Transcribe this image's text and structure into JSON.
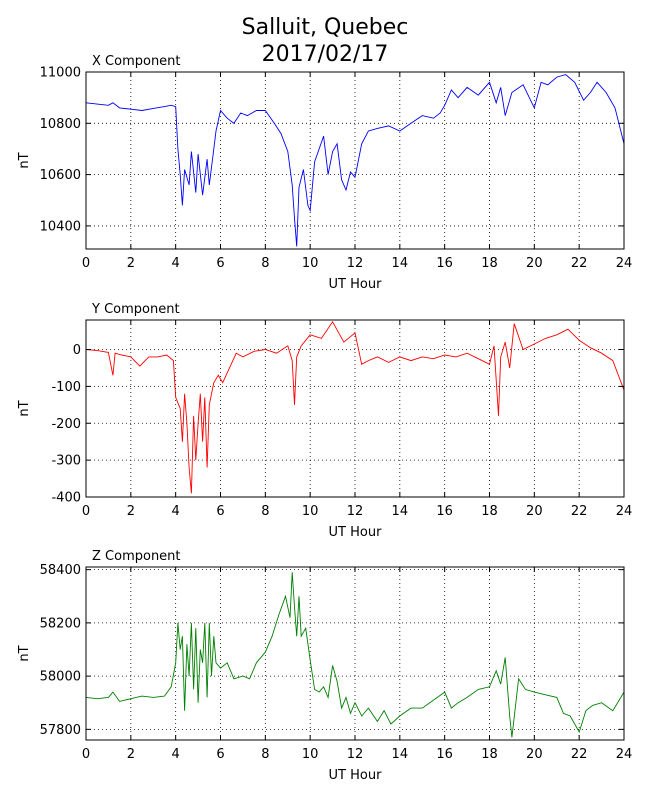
{
  "figure": {
    "title_line1": "Salluit, Quebec",
    "title_line2": "2017/02/17"
  },
  "chart_data": [
    {
      "type": "line",
      "subtitle": "X Component",
      "xlabel": "UT Hour",
      "ylabel": "nT",
      "xlim": [
        0,
        24
      ],
      "ylim": [
        10310,
        11000
      ],
      "xticks": [
        0,
        2,
        4,
        6,
        8,
        10,
        12,
        14,
        16,
        18,
        20,
        22,
        24
      ],
      "yticks": [
        10400,
        10600,
        10800,
        11000
      ],
      "grid": true,
      "color": "#0000ff",
      "x": [
        0,
        0.5,
        1,
        1.2,
        1.5,
        2,
        2.5,
        3,
        3.5,
        3.8,
        4.0,
        4.1,
        4.2,
        4.3,
        4.4,
        4.6,
        4.7,
        4.9,
        5.0,
        5.2,
        5.4,
        5.5,
        5.7,
        5.8,
        6.0,
        6.3,
        6.6,
        6.9,
        7.2,
        7.6,
        8.0,
        8.4,
        8.7,
        9.0,
        9.2,
        9.3,
        9.4,
        9.5,
        9.7,
        9.9,
        10.0,
        10.2,
        10.4,
        10.6,
        10.8,
        11.0,
        11.2,
        11.4,
        11.6,
        11.8,
        12.0,
        12.3,
        12.6,
        13.0,
        13.5,
        14.0,
        14.5,
        15.0,
        15.5,
        15.8,
        16.0,
        16.3,
        16.6,
        17.0,
        17.5,
        18.0,
        18.3,
        18.5,
        18.7,
        19.0,
        19.5,
        20.0,
        20.3,
        20.6,
        21.0,
        21.4,
        21.8,
        22.2,
        22.5,
        22.8,
        23.2,
        23.6,
        24.0
      ],
      "y": [
        10880,
        10875,
        10870,
        10880,
        10860,
        10855,
        10850,
        10858,
        10865,
        10870,
        10865,
        10700,
        10600,
        10480,
        10620,
        10560,
        10690,
        10530,
        10680,
        10520,
        10660,
        10560,
        10700,
        10770,
        10850,
        10820,
        10800,
        10840,
        10830,
        10850,
        10850,
        10800,
        10760,
        10690,
        10560,
        10430,
        10320,
        10550,
        10620,
        10480,
        10460,
        10650,
        10700,
        10750,
        10600,
        10690,
        10720,
        10580,
        10540,
        10610,
        10590,
        10720,
        10770,
        10780,
        10790,
        10770,
        10800,
        10830,
        10820,
        10840,
        10870,
        10930,
        10900,
        10940,
        10910,
        10960,
        10880,
        10940,
        10830,
        10920,
        10950,
        10860,
        10960,
        10950,
        10980,
        10990,
        10960,
        10890,
        10920,
        10960,
        10920,
        10860,
        10720
      ]
    },
    {
      "type": "line",
      "subtitle": "Y Component",
      "xlabel": "UT Hour",
      "ylabel": "nT",
      "xlim": [
        0,
        24
      ],
      "ylim": [
        -400,
        80
      ],
      "xticks": [
        0,
        2,
        4,
        6,
        8,
        10,
        12,
        14,
        16,
        18,
        20,
        22,
        24
      ],
      "yticks": [
        -400,
        -300,
        -200,
        -100,
        0
      ],
      "grid": true,
      "color": "#ff0000",
      "x": [
        0,
        0.5,
        1.0,
        1.2,
        1.3,
        1.6,
        2.0,
        2.4,
        2.8,
        3.2,
        3.6,
        3.9,
        4.0,
        4.2,
        4.3,
        4.4,
        4.5,
        4.6,
        4.7,
        4.8,
        4.9,
        5.0,
        5.1,
        5.2,
        5.3,
        5.4,
        5.5,
        5.7,
        5.9,
        6.1,
        6.4,
        6.7,
        7.0,
        7.5,
        8.0,
        8.5,
        9.0,
        9.2,
        9.3,
        9.4,
        9.6,
        10.0,
        10.5,
        11.0,
        11.5,
        12.0,
        12.3,
        12.6,
        13.0,
        13.5,
        14.0,
        14.5,
        15.0,
        15.5,
        16.0,
        16.5,
        17.0,
        17.5,
        18.0,
        18.2,
        18.4,
        18.5,
        18.7,
        18.9,
        19.1,
        19.5,
        20.0,
        20.5,
        21.0,
        21.5,
        22.0,
        22.5,
        23.0,
        23.5,
        24.0
      ],
      "y": [
        0,
        -3,
        -8,
        -70,
        -10,
        -15,
        -20,
        -45,
        -20,
        -20,
        -15,
        -30,
        -130,
        -160,
        -250,
        -120,
        -200,
        -320,
        -390,
        -180,
        -300,
        -200,
        -120,
        -250,
        -130,
        -320,
        -150,
        -90,
        -70,
        -90,
        -50,
        -10,
        -20,
        -5,
        0,
        -10,
        10,
        -30,
        -150,
        -20,
        10,
        40,
        30,
        75,
        20,
        45,
        -40,
        -30,
        -20,
        -35,
        -20,
        -30,
        -20,
        -25,
        -15,
        -20,
        -10,
        -25,
        -40,
        10,
        -180,
        -20,
        20,
        -50,
        70,
        0,
        15,
        30,
        40,
        55,
        25,
        5,
        -10,
        -30,
        -110
      ]
    },
    {
      "type": "line",
      "subtitle": "Z Component",
      "xlabel": "UT Hour",
      "ylabel": "nT",
      "xlim": [
        0,
        24
      ],
      "ylim": [
        57760,
        58410
      ],
      "xticks": [
        0,
        2,
        4,
        6,
        8,
        10,
        12,
        14,
        16,
        18,
        20,
        22,
        24
      ],
      "yticks": [
        57800,
        58000,
        58200,
        58400
      ],
      "grid": true,
      "color": "#008000",
      "x": [
        0,
        0.5,
        1.0,
        1.2,
        1.5,
        2.0,
        2.5,
        3.0,
        3.5,
        3.8,
        4.0,
        4.1,
        4.2,
        4.3,
        4.4,
        4.5,
        4.6,
        4.7,
        4.8,
        4.9,
        5.0,
        5.1,
        5.2,
        5.3,
        5.4,
        5.5,
        5.6,
        5.7,
        5.8,
        6.0,
        6.3,
        6.6,
        7.0,
        7.3,
        7.6,
        8.0,
        8.3,
        8.6,
        8.9,
        9.1,
        9.2,
        9.3,
        9.4,
        9.5,
        9.6,
        9.8,
        10.0,
        10.2,
        10.4,
        10.6,
        10.8,
        11.0,
        11.2,
        11.4,
        11.6,
        11.8,
        12.0,
        12.3,
        12.6,
        13.0,
        13.3,
        13.6,
        14.0,
        14.5,
        15.0,
        15.5,
        16.0,
        16.3,
        16.6,
        17.0,
        17.5,
        18.0,
        18.3,
        18.5,
        18.7,
        18.9,
        19.0,
        19.3,
        19.6,
        20.0,
        20.5,
        21.0,
        21.3,
        21.6,
        22.0,
        22.3,
        22.6,
        23.0,
        23.5,
        24.0
      ],
      "y": [
        57920,
        57915,
        57920,
        57940,
        57905,
        57915,
        57925,
        57920,
        57925,
        57960,
        58050,
        58200,
        58100,
        58150,
        57870,
        58120,
        58000,
        58200,
        57950,
        58180,
        57900,
        58100,
        58050,
        58200,
        57920,
        58200,
        58000,
        58150,
        58050,
        58030,
        58050,
        57990,
        58000,
        57990,
        58050,
        58090,
        58150,
        58230,
        58300,
        58220,
        58390,
        58260,
        58150,
        58300,
        58150,
        58180,
        58060,
        57950,
        57940,
        57960,
        57920,
        58040,
        57980,
        57880,
        57920,
        57860,
        57900,
        57850,
        57880,
        57830,
        57870,
        57820,
        57850,
        57880,
        57880,
        57910,
        57940,
        57880,
        57900,
        57920,
        57950,
        57960,
        58020,
        57970,
        58070,
        57850,
        57770,
        57990,
        57950,
        57940,
        57930,
        57920,
        57860,
        57850,
        57790,
        57870,
        57890,
        57900,
        57870,
        57940
      ]
    }
  ]
}
